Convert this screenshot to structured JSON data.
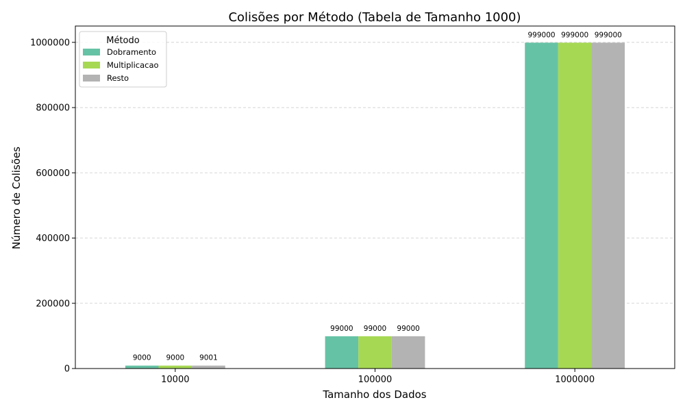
{
  "chart_data": {
    "type": "bar",
    "title": "Colisões por Método (Tabela de Tamanho 1000)",
    "xlabel": "Tamanho dos Dados",
    "ylabel": "Número de Colisões",
    "categories": [
      "10000",
      "100000",
      "1000000"
    ],
    "series": [
      {
        "name": "Dobramento",
        "values": [
          9000,
          99000,
          999000
        ],
        "labels": [
          "9000",
          "99000",
          "999000"
        ],
        "color": "#66c2a5"
      },
      {
        "name": "Multiplicacao",
        "values": [
          9000,
          99000,
          999000
        ],
        "labels": [
          "9000",
          "99000",
          "999000"
        ],
        "color": "#a6d854"
      },
      {
        "name": "Resto",
        "values": [
          9001,
          99000,
          999000
        ],
        "labels": [
          "9001",
          "99000",
          "999000"
        ],
        "color": "#b3b3b3"
      }
    ],
    "ylim": [
      0,
      1050000
    ],
    "yticks": [
      0,
      200000,
      400000,
      600000,
      800000,
      1000000
    ],
    "ytick_labels": [
      "0",
      "200000",
      "400000",
      "600000",
      "800000",
      "1000000"
    ],
    "grid": "y-dashed",
    "legend": {
      "title": "Método",
      "placement": "top-left"
    }
  }
}
